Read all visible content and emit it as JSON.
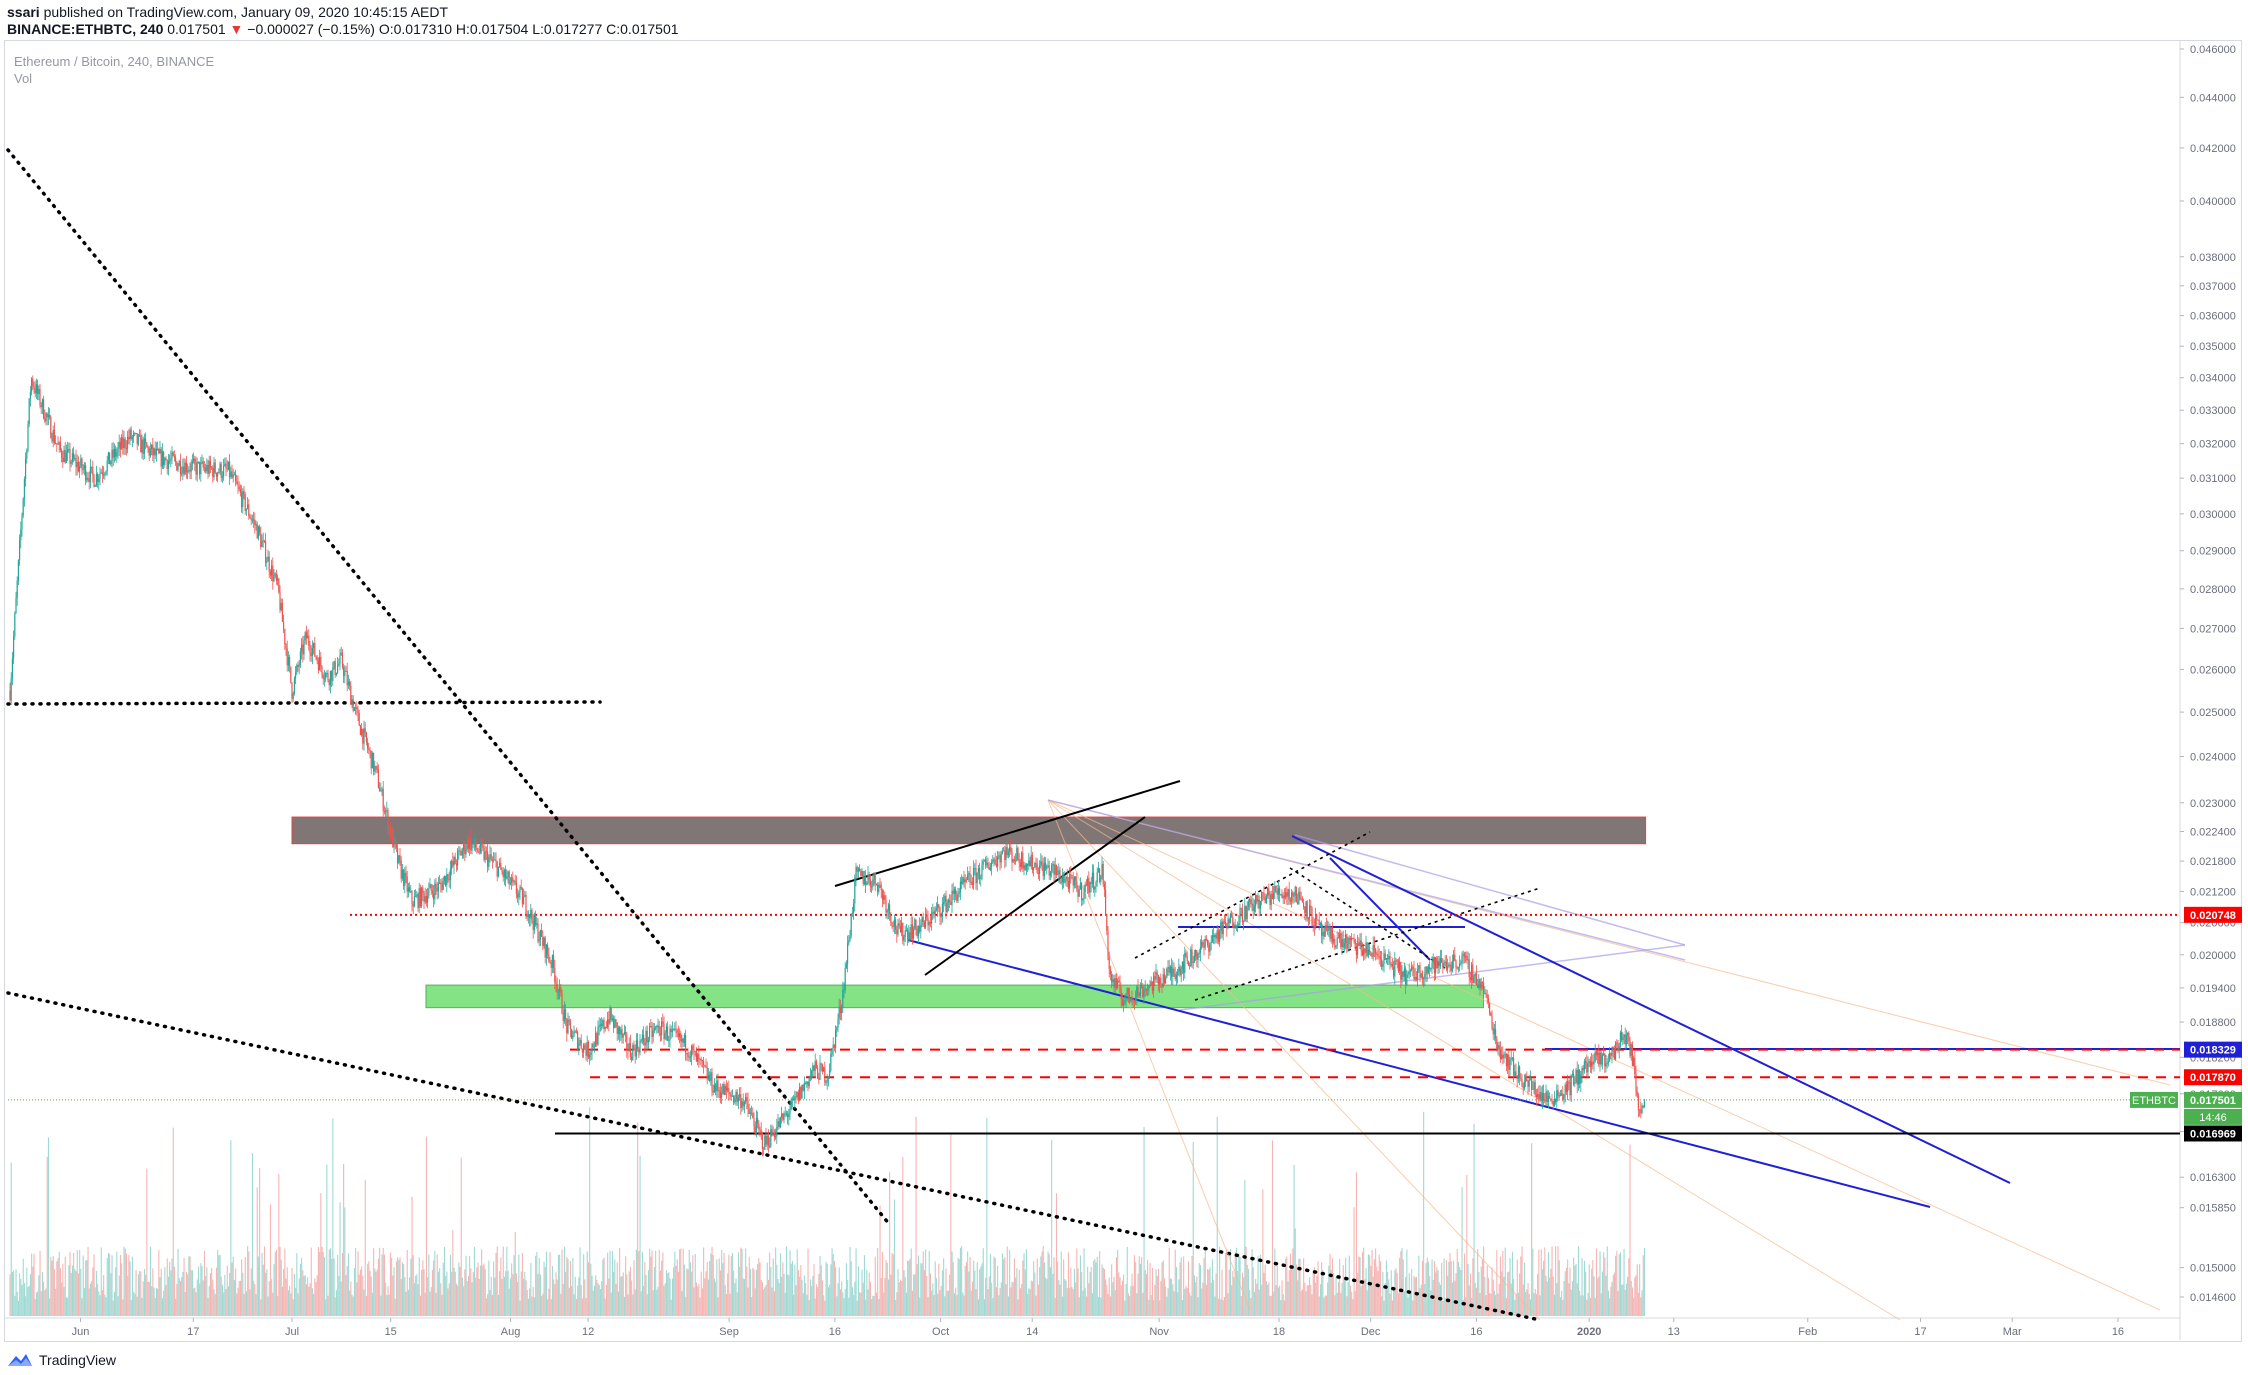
{
  "header": {
    "publisher": "ssari",
    "published_text": " published on TradingView.com, January 09, 2020 10:45:15 AEDT",
    "symbol": "BINANCE:ETHBTC, 240",
    "last": "0.017501",
    "change": "−0.000027 (−0.15%)",
    "ohlc": "O:0.017310 H:0.017504 L:0.017277 C:0.017501"
  },
  "legend": {
    "symbol_description": "Ethereum / Bitcoin, 240, BINANCE",
    "volume_label": "Vol"
  },
  "footer": {
    "brand": "TradingView"
  },
  "colors": {
    "up": "#26a69a",
    "down": "#ef5350",
    "blue_line": "#1f1fd6",
    "resistance_zone": "#7b6f6f",
    "support_zone": "#7ee27e",
    "red_level": "#ff0000"
  },
  "icons": [
    "down-triangle-icon",
    "tradingview-logo-icon"
  ],
  "chart_data": {
    "type": "candlestick",
    "x_axis_labels": [
      "Jun",
      "17",
      "Jul",
      "15",
      "Aug",
      "12",
      "Sep",
      "16",
      "Oct",
      "14",
      "Nov",
      "18",
      "Dec",
      "16",
      "2020",
      "13",
      "Feb",
      "17",
      "Mar",
      "16"
    ],
    "y_axis_labels": [
      "0.046000",
      "0.044000",
      "0.042000",
      "0.040000",
      "0.038000",
      "0.037000",
      "0.036000",
      "0.035000",
      "0.034000",
      "0.033000",
      "0.032000",
      "0.031000",
      "0.030000",
      "0.029000",
      "0.028000",
      "0.027000",
      "0.026000",
      "0.025000",
      "0.024000",
      "0.023000",
      "0.022400",
      "0.021800",
      "0.021200",
      "0.020600",
      "0.020000",
      "0.019400",
      "0.018800",
      "0.018200",
      "0.017600",
      "0.017000",
      "0.016300",
      "0.015850",
      "0.015000",
      "0.014600"
    ],
    "y_axis_scale": "log",
    "price_tags": [
      {
        "label": "0.020748",
        "kind": "red"
      },
      {
        "label": "0.018329",
        "kind": "blue"
      },
      {
        "label": "0.017870",
        "kind": "red"
      },
      {
        "label": "ETHBTC",
        "kind": "symbol"
      },
      {
        "label": "0.017501",
        "kind": "last"
      },
      {
        "label": "14:46",
        "kind": "countdown"
      },
      {
        "label": "0.016969",
        "kind": "black"
      }
    ],
    "price_path": [
      [
        "2019-05-22",
        0.0255
      ],
      [
        "2019-05-25",
        0.034
      ],
      [
        "2019-05-29",
        0.0318
      ],
      [
        "2019-06-03",
        0.031
      ],
      [
        "2019-06-08",
        0.0322
      ],
      [
        "2019-06-12",
        0.0316
      ],
      [
        "2019-06-17",
        0.0313
      ],
      [
        "2019-06-22",
        0.0312
      ],
      [
        "2019-06-26",
        0.0296
      ],
      [
        "2019-06-29",
        0.028
      ],
      [
        "2019-07-01",
        0.0255
      ],
      [
        "2019-07-03",
        0.0268
      ],
      [
        "2019-07-06",
        0.0258
      ],
      [
        "2019-07-08",
        0.0262
      ],
      [
        "2019-07-10",
        0.025
      ],
      [
        "2019-07-13",
        0.0236
      ],
      [
        "2019-07-16",
        0.0218
      ],
      [
        "2019-07-18",
        0.021
      ],
      [
        "2019-07-22",
        0.0213
      ],
      [
        "2019-07-26",
        0.0222
      ],
      [
        "2019-07-30",
        0.0217
      ],
      [
        "2019-08-03",
        0.021
      ],
      [
        "2019-08-07",
        0.0198
      ],
      [
        "2019-08-09",
        0.0187
      ],
      [
        "2019-08-12",
        0.0183
      ],
      [
        "2019-08-15",
        0.0189
      ],
      [
        "2019-08-18",
        0.0183
      ],
      [
        "2019-08-22",
        0.0187
      ],
      [
        "2019-08-26",
        0.0184
      ],
      [
        "2019-08-30",
        0.0177
      ],
      [
        "2019-09-03",
        0.0175
      ],
      [
        "2019-09-06",
        0.0168
      ],
      [
        "2019-09-10",
        0.0174
      ],
      [
        "2019-09-13",
        0.018
      ],
      [
        "2019-09-15",
        0.0179
      ],
      [
        "2019-09-17",
        0.0192
      ],
      [
        "2019-09-19",
        0.0215
      ],
      [
        "2019-09-22",
        0.0214
      ],
      [
        "2019-09-25",
        0.0204
      ],
      [
        "2019-09-28",
        0.0205
      ],
      [
        "2019-10-02",
        0.021
      ],
      [
        "2019-10-05",
        0.0214
      ],
      [
        "2019-10-10",
        0.022
      ],
      [
        "2019-10-13",
        0.0218
      ],
      [
        "2019-10-17",
        0.0216
      ],
      [
        "2019-10-21",
        0.0212
      ],
      [
        "2019-10-24",
        0.0216
      ],
      [
        "2019-10-25",
        0.0196
      ],
      [
        "2019-10-27",
        0.0192
      ],
      [
        "2019-10-30",
        0.0194
      ],
      [
        "2019-11-03",
        0.0197
      ],
      [
        "2019-11-07",
        0.0201
      ],
      [
        "2019-11-11",
        0.0206
      ],
      [
        "2019-11-15",
        0.021
      ],
      [
        "2019-11-18",
        0.0212
      ],
      [
        "2019-11-21",
        0.0211
      ],
      [
        "2019-11-24",
        0.0204
      ],
      [
        "2019-11-28",
        0.0202
      ],
      [
        "2019-12-02",
        0.02
      ],
      [
        "2019-12-06",
        0.0196
      ],
      [
        "2019-12-10",
        0.0198
      ],
      [
        "2019-12-14",
        0.0199
      ],
      [
        "2019-12-17",
        0.0194
      ],
      [
        "2019-12-19",
        0.0184
      ],
      [
        "2019-12-22",
        0.0179
      ],
      [
        "2019-12-26",
        0.0175
      ],
      [
        "2019-12-29",
        0.0177
      ],
      [
        "2020-01-01",
        0.0181
      ],
      [
        "2020-01-04",
        0.0182
      ],
      [
        "2020-01-06",
        0.0186
      ],
      [
        "2020-01-07",
        0.0183
      ],
      [
        "2020-01-08",
        0.0174
      ],
      [
        "2020-01-09",
        0.0175
      ]
    ],
    "levels": [
      {
        "price": 0.016969,
        "style": "solid-black"
      },
      {
        "price": 0.020748,
        "style": "dotted-red"
      },
      {
        "price": 0.018329,
        "style": "dashed-red"
      },
      {
        "price": 0.01787,
        "style": "dashed-red"
      },
      {
        "price": 0.017501,
        "style": "dotted-green"
      },
      {
        "price": 0.0251,
        "style": "dotted-black"
      }
    ],
    "zones": [
      {
        "name": "resistance",
        "from": "2019-07-01",
        "to": "2020-01-09",
        "low": 0.02215,
        "high": 0.0227
      },
      {
        "name": "support",
        "from": "2019-07-20",
        "to": "2019-12-17",
        "low": 0.01905,
        "high": 0.01945
      }
    ],
    "volume": "bars at bottom of pane, colored by candle direction"
  }
}
